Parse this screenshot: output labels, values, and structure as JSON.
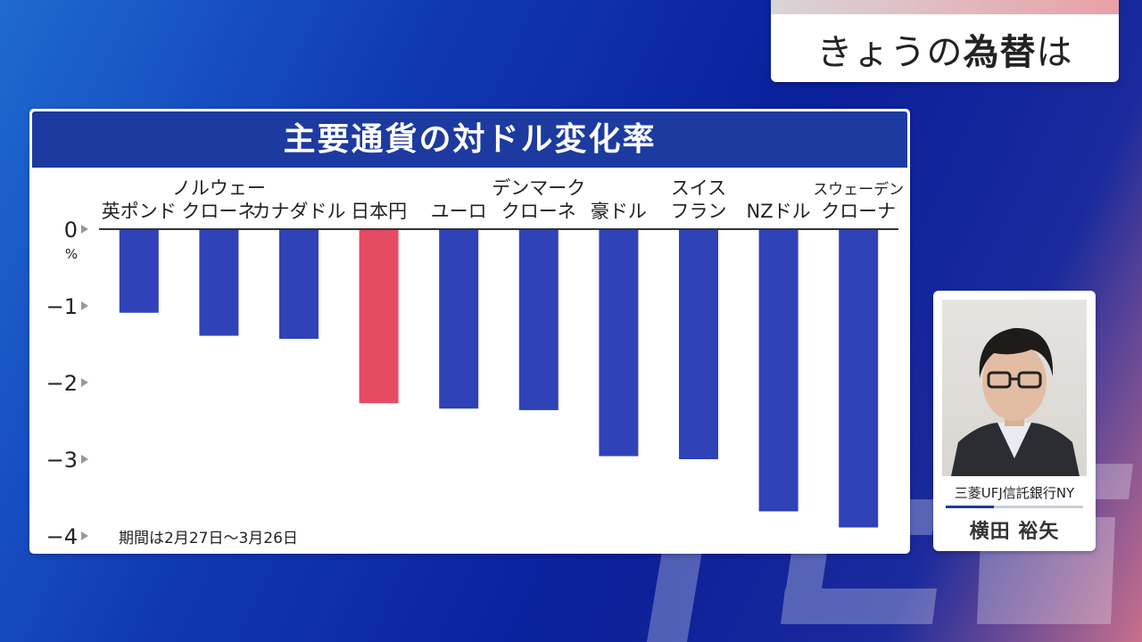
{
  "header": {
    "title_pre": "きょうの",
    "title_bold": "為替",
    "title_post": "は"
  },
  "chart_data": {
    "type": "bar",
    "title": "主要通貨の対ドル変化率",
    "categories": [
      [
        "英ポンド"
      ],
      [
        "ノルウェー",
        "クローネ"
      ],
      [
        "カナダドル"
      ],
      [
        "日本円"
      ],
      [
        "ユーロ"
      ],
      [
        "デンマーク",
        "クローネ"
      ],
      [
        "豪ドル"
      ],
      [
        "スイス",
        "フラン"
      ],
      [
        "NZドル"
      ],
      [
        "スウェーデン",
        "クローナ"
      ]
    ],
    "values": [
      -1.09,
      -1.39,
      -1.43,
      -2.27,
      -2.34,
      -2.36,
      -2.96,
      -3.0,
      -3.68,
      -3.89
    ],
    "highlight_index": 3,
    "colors": {
      "bar": "#2f42b8",
      "highlight": "#e54c64",
      "axis": "#333333"
    },
    "y_ticks": [
      "0",
      "−1",
      "−2",
      "−3",
      "−4"
    ],
    "y_tick_values": [
      0,
      -1,
      -2,
      -3,
      -4
    ],
    "ylim": [
      -4,
      0
    ],
    "ylabel": "%",
    "annotation": "期間は2月27日〜3月26日"
  },
  "person": {
    "company": "三菱UFJ信託銀行NY",
    "name": "横田 裕矢"
  }
}
